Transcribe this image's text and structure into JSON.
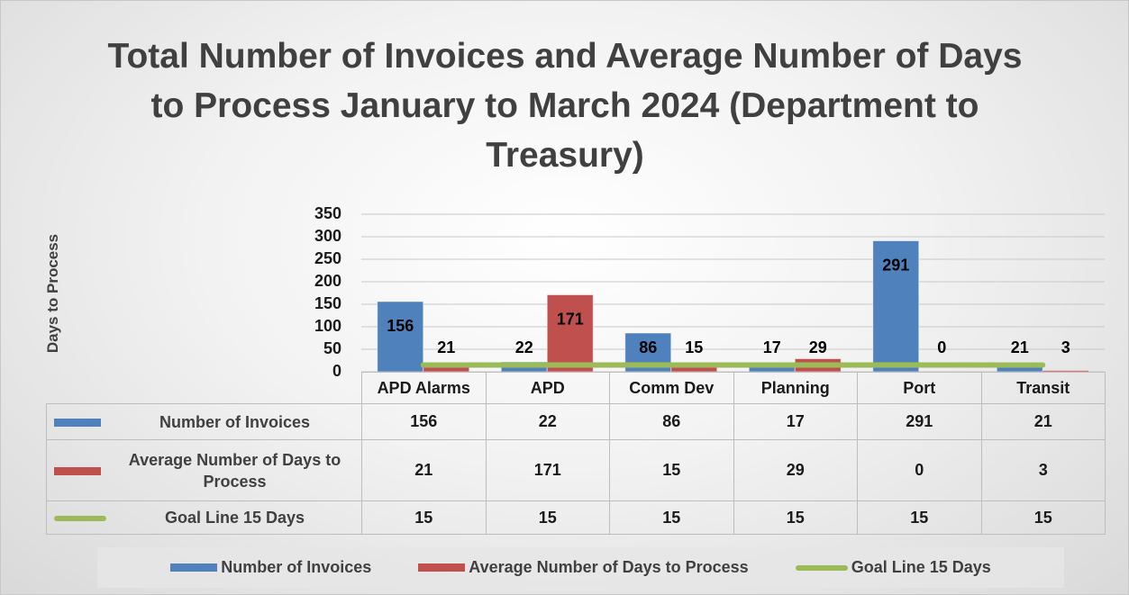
{
  "chart_data": {
    "type": "bar",
    "title": "Total Number of Invoices and Average Number of Days to Process January to March 2024 (Department to Treasury)",
    "ylabel": "Days to Process",
    "categories": [
      "APD Alarms",
      "APD",
      "Comm Dev",
      "Planning",
      "Port",
      "Transit"
    ],
    "series": [
      {
        "name": "Number of Invoices",
        "color": "#4f81bd",
        "values": [
          156,
          22,
          86,
          17,
          291,
          21
        ]
      },
      {
        "name": "Average Number of Days to Process",
        "color": "#c0504d",
        "values": [
          21,
          171,
          15,
          29,
          0,
          3
        ]
      },
      {
        "name": "Goal Line 15 Days",
        "color": "#9bbb59",
        "type": "line",
        "values": [
          15,
          15,
          15,
          15,
          15,
          15
        ]
      }
    ],
    "ylim": [
      0,
      350
    ],
    "yticks": [
      0,
      50,
      100,
      150,
      200,
      250,
      300,
      350
    ],
    "grid": true,
    "data_table": true,
    "legend": "bottom"
  }
}
